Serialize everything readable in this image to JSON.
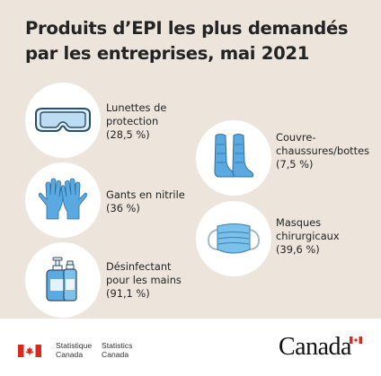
{
  "title": {
    "line1": "Produits d’EPI les plus demandés",
    "line2": "par les entreprises, mai 2021"
  },
  "items": [
    {
      "icon": "goggles-icon",
      "line1": "Lunettes de",
      "line2": "protection",
      "line3": "(28,5 %)"
    },
    {
      "icon": "gloves-icon",
      "line1": "Gants en nitrile",
      "line2": "(36 %)"
    },
    {
      "icon": "sanitizer-icon",
      "line1": "Désinfectant",
      "line2": "pour les mains",
      "line3": "(91,1 %)"
    },
    {
      "icon": "boot-covers-icon",
      "line1": "Couvre-",
      "line2": "chaussures/bottes",
      "line3": "(7,5 %)"
    },
    {
      "icon": "surgical-mask-icon",
      "line1": "Masques",
      "line2": "chirurgicaux",
      "line3": "(39,6 %)"
    }
  ],
  "footer": {
    "dept_fr_1": "Statistique",
    "dept_fr_2": "Canada",
    "dept_en_1": "Statistics",
    "dept_en_2": "Canada",
    "wordmark": "Canada"
  },
  "colors": {
    "background": "#ede5dc",
    "icon_blue": "#5aa9e0",
    "flag_red": "#d52b1e"
  }
}
